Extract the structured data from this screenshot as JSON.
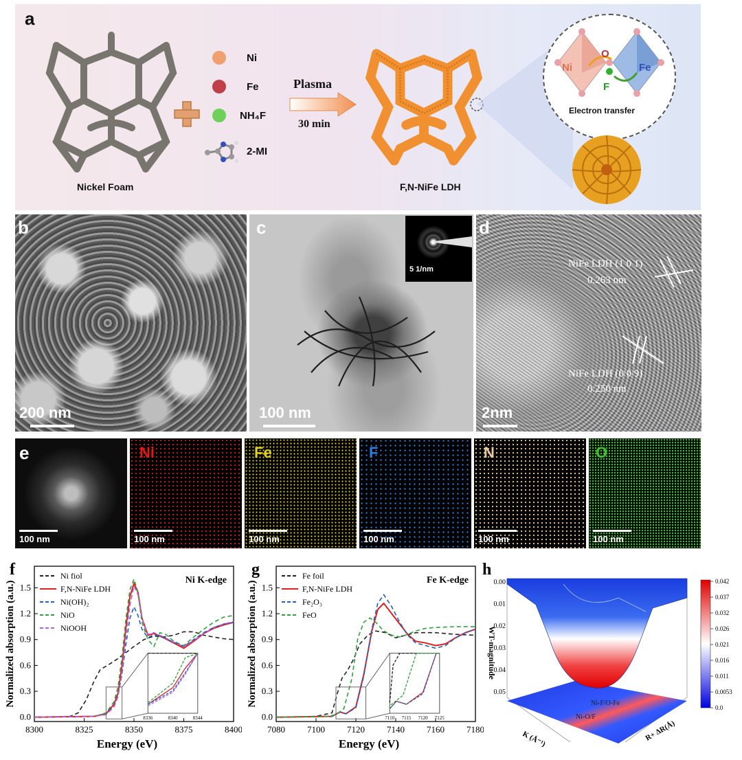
{
  "panel_a": {
    "letter": "a",
    "foam_label": "Nickel Foam",
    "legend": [
      {
        "label": "Ni",
        "color": "#f0a070"
      },
      {
        "label": "Fe",
        "color": "#c0404a"
      },
      {
        "label": "NH₄F",
        "color": "#6fd05a"
      },
      {
        "label": "2-MI",
        "color": ""
      }
    ],
    "arrow_top": "Plasma",
    "arrow_bottom": "30 min",
    "product_label": "F,N-NiFe LDH",
    "inset": {
      "ni": "Ni",
      "o": "O",
      "fe": "Fe",
      "f": "F",
      "caption": "Electron transfer"
    }
  },
  "panel_b": {
    "letter": "b",
    "scale": "200 nm"
  },
  "panel_c": {
    "letter": "c",
    "scale": "100 nm",
    "inset_scale": "5 1/nm"
  },
  "panel_d": {
    "letter": "d",
    "scale": "2nm",
    "fringe1_line1": "NiFe LDH (1 0 1)",
    "fringe1_line2": "0.263 nm",
    "fringe2_line1": "NiFe LDH (0 0 9)",
    "fringe2_line2": "0.250 nm"
  },
  "panel_e": {
    "letter": "e",
    "maps": [
      {
        "label": "",
        "color": "#cccccc",
        "scale": "100 nm"
      },
      {
        "label": "Ni",
        "color": "#e01818",
        "scale": "100 nm"
      },
      {
        "label": "Fe",
        "color": "#e0d020",
        "scale": "100 nm"
      },
      {
        "label": "F",
        "color": "#2a7fe0",
        "scale": "100 nm"
      },
      {
        "label": "N",
        "color": "#e8c8a0",
        "scale": "100 nm"
      },
      {
        "label": "O",
        "color": "#40c030",
        "scale": "100 nm"
      }
    ]
  },
  "chart_data": [
    {
      "id": "f",
      "type": "line",
      "letter": "f",
      "title": "Ni K-edge",
      "xlabel": "Energy (eV)",
      "ylabel": "Normalized absorption (a.u.)",
      "xlim": [
        8300,
        8400
      ],
      "ylim": [
        -0.05,
        1.75
      ],
      "xticks": [
        8300,
        8325,
        8350,
        8375,
        8400
      ],
      "yticks": [
        0.0,
        0.3,
        0.6,
        0.9,
        1.2,
        1.5
      ],
      "yticklabels": [
        "0.0",
        "0.3",
        "0.6",
        "0.9",
        "1.2",
        "1.5"
      ],
      "series": [
        {
          "name": "Ni fiol",
          "color": "#222222",
          "dash": "6,4",
          "x": [
            8300,
            8318,
            8322,
            8326,
            8330,
            8333,
            8338,
            8342,
            8346,
            8350,
            8355,
            8360,
            8365,
            8370,
            8375,
            8380,
            8385,
            8390,
            8395,
            8400
          ],
          "y": [
            0.0,
            0.01,
            0.05,
            0.2,
            0.42,
            0.55,
            0.62,
            0.68,
            0.75,
            0.82,
            0.9,
            0.94,
            0.93,
            0.95,
            0.99,
            0.99,
            0.95,
            0.93,
            0.91,
            0.9
          ]
        },
        {
          "name": "F,N-NiFe LDH",
          "color": "#e02020",
          "dash": "",
          "x": [
            8300,
            8330,
            8336,
            8340,
            8342,
            8344,
            8346,
            8348,
            8350,
            8352,
            8354,
            8357,
            8360,
            8365,
            8370,
            8375,
            8380,
            8385,
            8390,
            8395,
            8400
          ],
          "y": [
            0.0,
            0.01,
            0.04,
            0.15,
            0.28,
            0.6,
            1.05,
            1.4,
            1.55,
            1.45,
            1.15,
            0.95,
            0.97,
            0.92,
            0.86,
            0.8,
            0.88,
            0.97,
            1.03,
            1.07,
            1.1
          ]
        },
        {
          "name": "Ni(OH)₂",
          "color": "#2060c0",
          "dash": "6,4",
          "x": [
            8300,
            8330,
            8336,
            8340,
            8342,
            8344,
            8346,
            8348,
            8350,
            8352,
            8354,
            8357,
            8360,
            8365,
            8370,
            8375,
            8380,
            8385,
            8390,
            8395,
            8400
          ],
          "y": [
            0.0,
            0.01,
            0.04,
            0.13,
            0.25,
            0.5,
            0.85,
            1.15,
            1.28,
            1.18,
            1.02,
            0.92,
            0.96,
            0.92,
            0.87,
            0.82,
            0.9,
            0.98,
            1.04,
            1.08,
            1.1
          ]
        },
        {
          "name": "NiO",
          "color": "#30a040",
          "dash": "6,4",
          "x": [
            8300,
            8330,
            8336,
            8340,
            8342,
            8344,
            8346,
            8348,
            8350,
            8352,
            8354,
            8357,
            8360,
            8363,
            8366,
            8370,
            8375,
            8380,
            8385,
            8390,
            8395,
            8400
          ],
          "y": [
            0.0,
            0.01,
            0.05,
            0.18,
            0.35,
            0.7,
            1.15,
            1.48,
            1.6,
            1.45,
            1.1,
            0.9,
            0.82,
            0.98,
            0.96,
            0.88,
            0.83,
            0.93,
            1.02,
            1.1,
            1.16,
            1.18
          ]
        },
        {
          "name": "NiOOH",
          "color": "#b060e0",
          "dash": "6,4",
          "x": [
            8300,
            8330,
            8336,
            8340,
            8342,
            8344,
            8346,
            8348,
            8350,
            8352,
            8354,
            8357,
            8360,
            8365,
            8370,
            8375,
            8380,
            8385,
            8390,
            8395,
            8400
          ],
          "y": [
            0.0,
            0.01,
            0.03,
            0.12,
            0.24,
            0.52,
            0.95,
            1.3,
            1.52,
            1.42,
            1.15,
            0.96,
            0.98,
            0.93,
            0.87,
            0.82,
            0.89,
            0.97,
            1.04,
            1.08,
            1.11
          ]
        }
      ],
      "inset": {
        "xticks": [
          8336,
          8340,
          8344
        ]
      }
    },
    {
      "id": "g",
      "type": "line",
      "letter": "g",
      "title": "Fe K-edge",
      "xlabel": "Energy (eV)",
      "ylabel": "Normalized absorption (a.u.)",
      "xlim": [
        7080,
        7180
      ],
      "ylim": [
        -0.05,
        1.75
      ],
      "xticks": [
        7080,
        7100,
        7120,
        7140,
        7160,
        7180
      ],
      "yticks": [
        0.0,
        0.3,
        0.6,
        0.9,
        1.2,
        1.5
      ],
      "yticklabels": [
        "0.0",
        "0.3",
        "0.6",
        "0.9",
        "1.2",
        "1.5"
      ],
      "series": [
        {
          "name": "Fe foil",
          "color": "#222222",
          "dash": "6,4",
          "x": [
            7080,
            7100,
            7108,
            7111,
            7113,
            7116,
            7119,
            7122,
            7126,
            7130,
            7135,
            7140,
            7145,
            7150,
            7160,
            7170,
            7180
          ],
          "y": [
            0.0,
            0.01,
            0.05,
            0.3,
            0.45,
            0.55,
            0.68,
            0.85,
            0.95,
            1.0,
            0.98,
            0.92,
            0.95,
            0.98,
            0.98,
            0.96,
            0.95
          ]
        },
        {
          "name": "F,N-NiFe LDH",
          "color": "#e02020",
          "dash": "",
          "x": [
            7080,
            7108,
            7112,
            7115,
            7120,
            7124,
            7128,
            7131,
            7134,
            7138,
            7142,
            7146,
            7150,
            7155,
            7160,
            7165,
            7170,
            7175,
            7180
          ],
          "y": [
            0.0,
            0.01,
            0.06,
            0.04,
            0.12,
            0.5,
            1.0,
            1.25,
            1.32,
            1.2,
            1.08,
            0.96,
            0.88,
            0.86,
            0.83,
            0.85,
            0.92,
            0.98,
            1.02
          ]
        },
        {
          "name": "Fe₂O₃",
          "color": "#2060c0",
          "dash": "6,4",
          "x": [
            7080,
            7108,
            7112,
            7115,
            7120,
            7124,
            7128,
            7131,
            7134,
            7138,
            7142,
            7146,
            7150,
            7155,
            7160,
            7165,
            7170,
            7175,
            7180
          ],
          "y": [
            0.0,
            0.01,
            0.06,
            0.04,
            0.11,
            0.48,
            1.02,
            1.32,
            1.42,
            1.28,
            1.1,
            0.95,
            0.86,
            0.83,
            0.8,
            0.83,
            0.92,
            0.98,
            1.02
          ]
        },
        {
          "name": "FeO",
          "color": "#30a040",
          "dash": "6,4",
          "x": [
            7080,
            7106,
            7110,
            7114,
            7118,
            7121,
            7124,
            7127,
            7130,
            7134,
            7138,
            7142,
            7146,
            7150,
            7155,
            7160,
            7170,
            7180
          ],
          "y": [
            0.0,
            0.01,
            0.03,
            0.1,
            0.45,
            0.92,
            1.1,
            1.15,
            1.1,
            1.0,
            0.95,
            0.93,
            0.96,
            1.0,
            1.03,
            1.04,
            1.05,
            1.05
          ]
        }
      ],
      "inset": {
        "xticks": [
          7110,
          7115,
          7120,
          7125
        ]
      }
    },
    {
      "id": "h",
      "type": "heatmap",
      "letter": "h",
      "zlabel": "WT-magnitude",
      "xlabel": "K (Å⁻¹)",
      "ylabel": "R+ ΔR(Å)",
      "zticks": [
        "0.00",
        "0.01",
        "0.02",
        "0.03",
        "0.04",
        "0.05"
      ],
      "colorbar_ticks": [
        "0.042",
        "0.037",
        "0.032",
        "0.026",
        "0.021",
        "0.016",
        "0.011",
        "0.0053",
        "0.0"
      ],
      "annotations": [
        "Ni-F/O-Fe",
        "Ni-O/F"
      ]
    }
  ]
}
